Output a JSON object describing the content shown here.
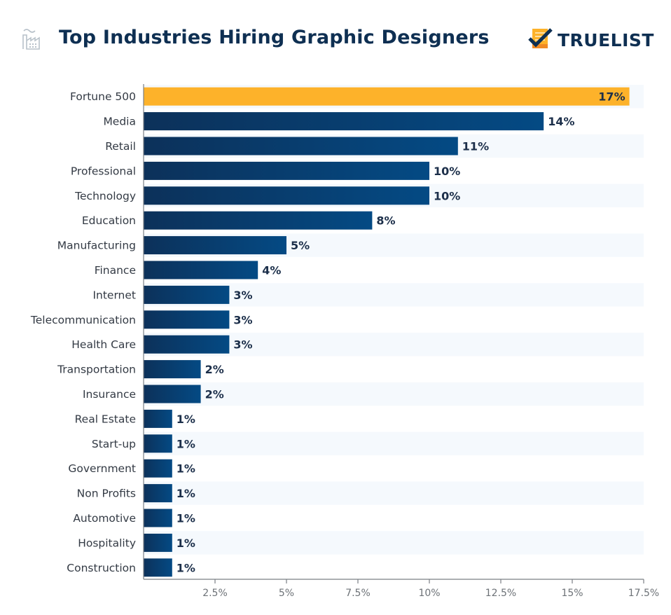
{
  "header": {
    "title": "Top Industries Hiring Graphic Designers",
    "icon": "factory-icon",
    "brand": "TRUELIST",
    "brand_icon": "checklist-logo-icon"
  },
  "colors": {
    "highlight_bar": "#fdb22a",
    "bar_dark": "#0c315a",
    "bar_light": "#044a84",
    "title": "#0e2f52",
    "stripe": "#f5f9fd",
    "axis": "#7a7f85"
  },
  "chart_data": {
    "type": "bar",
    "orientation": "horizontal",
    "title": "Top Industries Hiring Graphic Designers",
    "xlabel": "",
    "ylabel": "",
    "xlim": [
      0,
      17.5
    ],
    "grid": false,
    "legend": "none",
    "x_ticks": [
      2.5,
      5,
      7.5,
      10,
      12.5,
      15,
      17.5
    ],
    "x_tick_labels": [
      "2.5%",
      "5%",
      "7.5%",
      "10%",
      "12.5%",
      "15%",
      "17.5%"
    ],
    "categories": [
      "Fortune 500",
      "Media",
      "Retail",
      "Professional",
      "Technology",
      "Education",
      "Manufacturing",
      "Finance",
      "Internet",
      "Telecommunication",
      "Health Care",
      "Transportation",
      "Insurance",
      "Real Estate",
      "Start-up",
      "Government",
      "Non Profits",
      "Automotive",
      "Hospitality",
      "Construction"
    ],
    "values": [
      17,
      14,
      11,
      10,
      10,
      8,
      5,
      4,
      3,
      3,
      3,
      2,
      2,
      1,
      1,
      1,
      1,
      1,
      1,
      1
    ],
    "value_labels": [
      "17%",
      "14%",
      "11%",
      "10%",
      "10%",
      "8%",
      "5%",
      "4%",
      "3%",
      "3%",
      "3%",
      "2%",
      "2%",
      "1%",
      "1%",
      "1%",
      "1%",
      "1%",
      "1%",
      "1%"
    ],
    "highlight_index": 0
  }
}
